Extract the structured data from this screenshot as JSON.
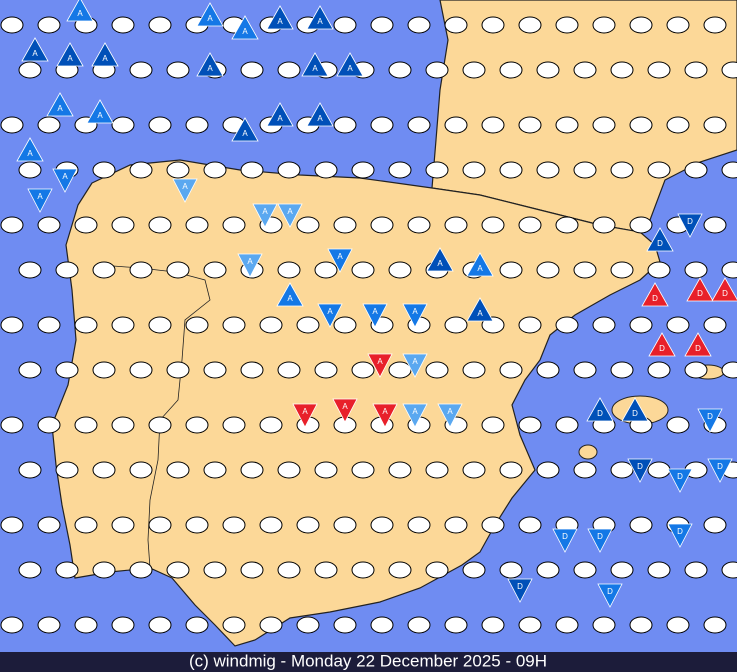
{
  "footer": "(c) windmig - Monday 22 December 2025 - 09H",
  "markers": [
    "A",
    "A",
    "A",
    "A",
    "A",
    "A",
    "A",
    "A",
    "A",
    "A",
    "A",
    "A",
    "A",
    "A",
    "A",
    "A",
    "A",
    "A",
    "A",
    "A",
    "A",
    "A",
    "A",
    "A",
    "A",
    "A",
    "A",
    "A",
    "A",
    "A",
    "A",
    "A",
    "A",
    "A",
    "A",
    "A",
    "A",
    "A",
    "D",
    "D",
    "D",
    "D",
    "D",
    "D",
    "D",
    "D",
    "D",
    "D",
    "D",
    "D",
    "D",
    "D",
    "D",
    "D",
    "D",
    "D"
  ]
}
